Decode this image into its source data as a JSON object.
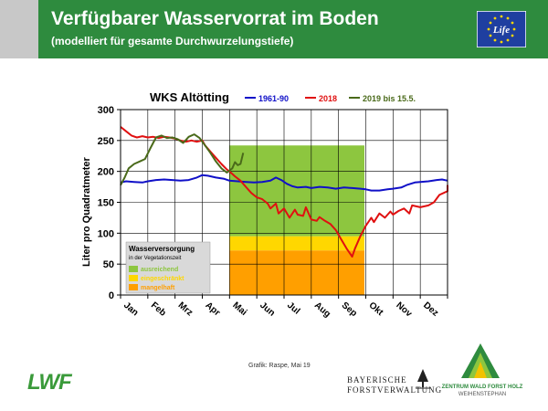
{
  "header": {
    "title": "Verfügbarer Wasservorrat im Boden",
    "subtitle": "(modelliert für gesamte Durchwurzelungstiefe)",
    "eu_logo_text": "Life"
  },
  "chart_data": {
    "type": "line",
    "title": "WKS Altötting",
    "xlabel": "",
    "ylabel": "Liter pro Quadratmeter",
    "ylim": [
      0,
      300
    ],
    "yticks": [
      0,
      50,
      100,
      150,
      200,
      250,
      300
    ],
    "x_unit": "months",
    "xlim": [
      0,
      12
    ],
    "months": [
      "Jan",
      "Feb",
      "Mrz",
      "Apr",
      "Mai",
      "Jun",
      "Jul",
      "Aug",
      "Sep",
      "Okt",
      "Nov",
      "Dez"
    ],
    "grid": true,
    "legend_placement": "top",
    "series": [
      {
        "name": "1961-90",
        "color": "#1010c8",
        "points": [
          [
            0,
            182
          ],
          [
            0.2,
            184
          ],
          [
            0.5,
            183
          ],
          [
            0.8,
            182
          ],
          [
            1.0,
            184
          ],
          [
            1.3,
            186
          ],
          [
            1.6,
            187
          ],
          [
            1.9,
            186
          ],
          [
            2.2,
            185
          ],
          [
            2.5,
            186
          ],
          [
            2.8,
            190
          ],
          [
            3.0,
            194
          ],
          [
            3.2,
            193
          ],
          [
            3.5,
            190
          ],
          [
            3.8,
            188
          ],
          [
            4.0,
            185
          ],
          [
            4.3,
            184
          ],
          [
            4.6,
            183
          ],
          [
            4.9,
            182
          ],
          [
            5.2,
            183
          ],
          [
            5.5,
            185
          ],
          [
            5.7,
            190
          ],
          [
            5.9,
            186
          ],
          [
            6.1,
            180
          ],
          [
            6.3,
            176
          ],
          [
            6.5,
            174
          ],
          [
            6.8,
            175
          ],
          [
            7.0,
            173
          ],
          [
            7.3,
            175
          ],
          [
            7.6,
            174
          ],
          [
            7.9,
            172
          ],
          [
            8.2,
            174
          ],
          [
            8.5,
            173
          ],
          [
            8.8,
            172
          ],
          [
            9.0,
            171
          ],
          [
            9.2,
            169
          ],
          [
            9.5,
            169
          ],
          [
            9.8,
            171
          ],
          [
            10.0,
            172
          ],
          [
            10.3,
            174
          ],
          [
            10.5,
            178
          ],
          [
            10.8,
            182
          ],
          [
            11.0,
            183
          ],
          [
            11.3,
            184
          ],
          [
            11.6,
            186
          ],
          [
            11.8,
            187
          ],
          [
            12.0,
            185
          ]
        ]
      },
      {
        "name": "2018",
        "color": "#e01010",
        "points": [
          [
            0,
            272
          ],
          [
            0.2,
            265
          ],
          [
            0.4,
            258
          ],
          [
            0.6,
            255
          ],
          [
            0.8,
            257
          ],
          [
            1.0,
            255
          ],
          [
            1.2,
            256
          ],
          [
            1.4,
            254
          ],
          [
            1.6,
            256
          ],
          [
            1.8,
            255
          ],
          [
            2.0,
            253
          ],
          [
            2.2,
            250
          ],
          [
            2.4,
            248
          ],
          [
            2.6,
            250
          ],
          [
            2.8,
            248
          ],
          [
            3.0,
            250
          ],
          [
            3.1,
            242
          ],
          [
            3.3,
            232
          ],
          [
            3.5,
            222
          ],
          [
            3.7,
            212
          ],
          [
            3.9,
            203
          ],
          [
            4.0,
            200
          ],
          [
            4.2,
            192
          ],
          [
            4.4,
            185
          ],
          [
            4.6,
            175
          ],
          [
            4.8,
            165
          ],
          [
            5.0,
            158
          ],
          [
            5.2,
            155
          ],
          [
            5.4,
            148
          ],
          [
            5.5,
            140
          ],
          [
            5.7,
            148
          ],
          [
            5.8,
            132
          ],
          [
            6.0,
            140
          ],
          [
            6.2,
            125
          ],
          [
            6.4,
            138
          ],
          [
            6.5,
            130
          ],
          [
            6.7,
            128
          ],
          [
            6.8,
            142
          ],
          [
            7.0,
            122
          ],
          [
            7.2,
            120
          ],
          [
            7.3,
            126
          ],
          [
            7.5,
            120
          ],
          [
            7.7,
            115
          ],
          [
            7.9,
            105
          ],
          [
            8.1,
            90
          ],
          [
            8.3,
            75
          ],
          [
            8.5,
            62
          ],
          [
            8.6,
            75
          ],
          [
            8.8,
            95
          ],
          [
            9.0,
            112
          ],
          [
            9.2,
            125
          ],
          [
            9.3,
            118
          ],
          [
            9.5,
            132
          ],
          [
            9.7,
            125
          ],
          [
            9.9,
            135
          ],
          [
            10.0,
            130
          ],
          [
            10.2,
            136
          ],
          [
            10.4,
            140
          ],
          [
            10.6,
            132
          ],
          [
            10.7,
            145
          ],
          [
            11.0,
            142
          ],
          [
            11.3,
            145
          ],
          [
            11.5,
            150
          ],
          [
            11.7,
            162
          ],
          [
            12.0,
            168
          ],
          [
            12.0,
            178
          ]
        ]
      },
      {
        "name": "2019 bis 15.5.",
        "color": "#4a6a1a",
        "points": [
          [
            0,
            178
          ],
          [
            0.15,
            190
          ],
          [
            0.3,
            205
          ],
          [
            0.5,
            212
          ],
          [
            0.7,
            216
          ],
          [
            0.9,
            220
          ],
          [
            1.1,
            238
          ],
          [
            1.3,
            255
          ],
          [
            1.5,
            258
          ],
          [
            1.7,
            254
          ],
          [
            1.9,
            255
          ],
          [
            2.1,
            252
          ],
          [
            2.3,
            246
          ],
          [
            2.5,
            256
          ],
          [
            2.7,
            260
          ],
          [
            2.9,
            254
          ],
          [
            3.1,
            242
          ],
          [
            3.3,
            230
          ],
          [
            3.5,
            216
          ],
          [
            3.7,
            205
          ],
          [
            3.9,
            198
          ],
          [
            4.1,
            205
          ],
          [
            4.2,
            215
          ],
          [
            4.3,
            210
          ],
          [
            4.4,
            212
          ],
          [
            4.5,
            230
          ]
        ]
      }
    ],
    "area_band": {
      "x": [
        4,
        8.95
      ],
      "ranges": [
        {
          "label": "ausreichend",
          "y": [
            95,
            242
          ],
          "color": "#8dc63f"
        },
        {
          "label": "eingeschränkt",
          "y": [
            72,
            95
          ],
          "color": "#ffd700"
        },
        {
          "label": "mangelhaft",
          "y": [
            0,
            72
          ],
          "color": "#ff9f00"
        }
      ]
    },
    "inset_legend": {
      "title": "Wasserversorgung",
      "subtitle": "in der Vegetationszeit",
      "items": [
        {
          "label": "ausreichend",
          "color": "#8dc63f",
          "text_color": "#8dc63f"
        },
        {
          "label": "eingeschränkt",
          "color": "#ffd700",
          "text_color": "#ffd700"
        },
        {
          "label": "mangelhaft",
          "color": "#ff9f00",
          "text_color": "#ff9f00"
        }
      ]
    }
  },
  "footer": {
    "credit": "Grafik: Raspe, Mai 19",
    "lwf": "LWF",
    "bay_forst_line1": "BAYERISCHE",
    "bay_forst_line2": "FORSTVERWALTUNG",
    "zwfh_line1": "ZENTRUM WALD FORST HOLZ",
    "zwfh_line2": "WEIHENSTEPHAN"
  }
}
